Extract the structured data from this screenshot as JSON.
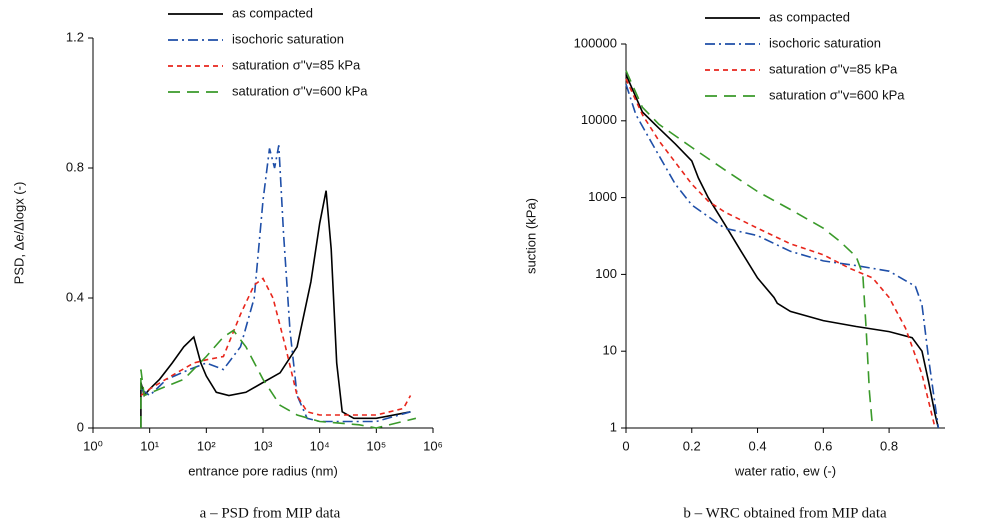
{
  "chart_data": [
    {
      "type": "line",
      "caption": "a – PSD from MIP data",
      "x_label": "entrance pore radius (nm)",
      "y_label": "PSD, Δe/Δlogx (-)",
      "xscale": "log",
      "xlim": [
        1,
        1000000
      ],
      "xticks": [
        {
          "value": 1,
          "label": "10⁰"
        },
        {
          "value": 10,
          "label": "10¹"
        },
        {
          "value": 100,
          "label": "10²"
        },
        {
          "value": 1000,
          "label": "10³"
        },
        {
          "value": 10000,
          "label": "10⁴"
        },
        {
          "value": 100000,
          "label": "10⁵"
        },
        {
          "value": 1000000,
          "label": "10⁶"
        }
      ],
      "yscale": "linear",
      "ylim": [
        0,
        1.2
      ],
      "yticks": [
        0,
        0.4,
        0.8,
        1.2
      ],
      "series": [
        {
          "name": "as compacted",
          "color": "#000000",
          "dash": "solid",
          "x": [
            7,
            7,
            8,
            10,
            15,
            25,
            40,
            60,
            80,
            100,
            150,
            250,
            500,
            1000,
            2000,
            4000,
            7000,
            10000,
            13000,
            16000,
            20000,
            25000,
            40000,
            100000,
            400000
          ],
          "values": [
            0,
            0.14,
            0.1,
            0.12,
            0.15,
            0.2,
            0.25,
            0.28,
            0.2,
            0.16,
            0.11,
            0.1,
            0.11,
            0.14,
            0.17,
            0.25,
            0.45,
            0.63,
            0.73,
            0.55,
            0.2,
            0.05,
            0.03,
            0.03,
            0.05
          ]
        },
        {
          "name": "isochoric saturation",
          "color": "#1f4fa8",
          "dash": "dashdot",
          "x": [
            7,
            10,
            20,
            50,
            100,
            200,
            400,
            700,
            1000,
            1300,
            1600,
            1900,
            2300,
            3000,
            4000,
            6000,
            10000,
            100000,
            400000
          ],
          "values": [
            0.12,
            0.1,
            0.15,
            0.18,
            0.2,
            0.18,
            0.25,
            0.4,
            0.7,
            0.86,
            0.8,
            0.87,
            0.6,
            0.3,
            0.1,
            0.03,
            0.02,
            0.02,
            0.05
          ]
        },
        {
          "name": "saturation σ''v=85 kPa",
          "color": "#e8261c",
          "dash": "dashed",
          "x": [
            7,
            10,
            30,
            60,
            100,
            200,
            400,
            700,
            1000,
            1500,
            2500,
            4000,
            6000,
            10000,
            30000,
            100000,
            300000,
            400000
          ],
          "values": [
            0.1,
            0.12,
            0.17,
            0.2,
            0.21,
            0.22,
            0.35,
            0.44,
            0.46,
            0.4,
            0.25,
            0.1,
            0.05,
            0.04,
            0.04,
            0.04,
            0.06,
            0.1
          ]
        },
        {
          "name": "saturation σ''v=600 kPa",
          "color": "#3a9a2a",
          "dash": "longdash",
          "x": [
            7,
            7,
            8,
            15,
            40,
            100,
            200,
            300,
            500,
            1000,
            2000,
            4000,
            10000,
            50000,
            100000,
            500000
          ],
          "values": [
            0,
            0.18,
            0.1,
            0.12,
            0.15,
            0.22,
            0.28,
            0.3,
            0.25,
            0.15,
            0.07,
            0.04,
            0.02,
            0.01,
            0,
            0.03
          ]
        }
      ]
    },
    {
      "type": "line",
      "caption": "b – WRC obtained from MIP data",
      "x_label": "water ratio, ew (-)",
      "y_label": "suction (kPa)",
      "xscale": "linear",
      "xlim": [
        0,
        0.97
      ],
      "xticks": [
        0,
        0.2,
        0.4,
        0.6,
        0.8
      ],
      "yscale": "log",
      "ylim": [
        1,
        100000
      ],
      "yticks": [
        1,
        10,
        100,
        1000,
        10000,
        100000
      ],
      "series": [
        {
          "name": "as compacted",
          "color": "#000000",
          "dash": "solid",
          "x": [
            0,
            0.05,
            0.1,
            0.15,
            0.2,
            0.22,
            0.25,
            0.3,
            0.35,
            0.4,
            0.45,
            0.46,
            0.5,
            0.6,
            0.7,
            0.8,
            0.87,
            0.9,
            0.92,
            0.94,
            0.95
          ],
          "values": [
            40000,
            13000,
            8000,
            5000,
            3000,
            1800,
            1000,
            450,
            200,
            90,
            50,
            42,
            33,
            25,
            21,
            18,
            15,
            10,
            4,
            1.5,
            1
          ]
        },
        {
          "name": "isochoric saturation",
          "color": "#1f4fa8",
          "dash": "dashdot",
          "x": [
            0,
            0.03,
            0.08,
            0.15,
            0.2,
            0.3,
            0.4,
            0.5,
            0.6,
            0.7,
            0.8,
            0.88,
            0.9,
            0.92,
            0.94,
            0.95
          ],
          "values": [
            30000,
            12000,
            5000,
            1500,
            800,
            400,
            320,
            200,
            150,
            130,
            110,
            70,
            40,
            8,
            2,
            1
          ]
        },
        {
          "name": "saturation σ''v=85 kPa",
          "color": "#e8261c",
          "dash": "dashed",
          "x": [
            0,
            0.05,
            0.1,
            0.2,
            0.25,
            0.3,
            0.4,
            0.5,
            0.6,
            0.68,
            0.75,
            0.8,
            0.85,
            0.9,
            0.93,
            0.94
          ],
          "values": [
            35000,
            12000,
            5500,
            1500,
            900,
            650,
            400,
            250,
            180,
            120,
            90,
            50,
            20,
            5,
            1.5,
            1
          ]
        },
        {
          "name": "saturation σ''v=600 kPa",
          "color": "#3a9a2a",
          "dash": "longdash",
          "x": [
            0,
            0.05,
            0.1,
            0.2,
            0.3,
            0.4,
            0.5,
            0.6,
            0.65,
            0.7,
            0.72,
            0.73,
            0.74,
            0.75
          ],
          "values": [
            45000,
            15000,
            9000,
            4500,
            2300,
            1200,
            700,
            400,
            270,
            170,
            100,
            20,
            3,
            1
          ]
        }
      ]
    }
  ]
}
